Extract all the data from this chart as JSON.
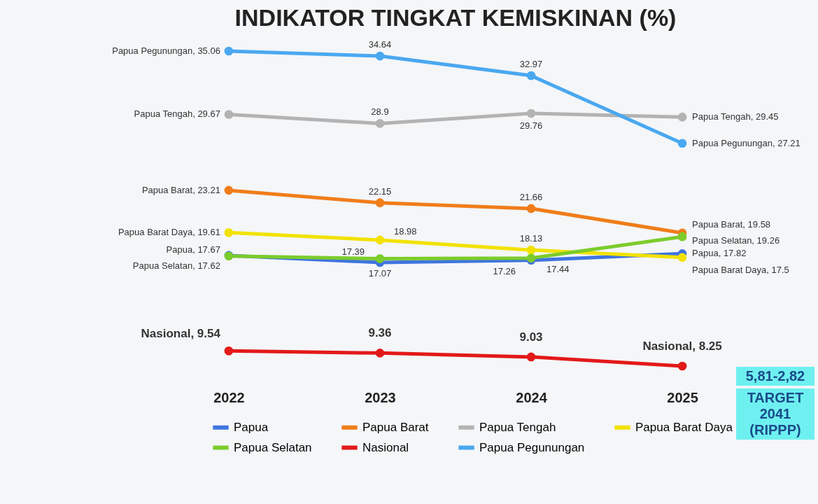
{
  "chart_data": {
    "type": "line",
    "title": "INDIKATOR TINGKAT KEMISKINAN (%)",
    "categories": [
      "2022",
      "2023",
      "2024",
      "2025"
    ],
    "series": [
      {
        "name": "Papua",
        "color": "#3f74e0",
        "values": [
          17.67,
          17.07,
          17.26,
          17.82
        ],
        "value_labels": [
          "Papua, 17.67",
          "17.07",
          "17.26",
          "Papua, 17.82"
        ]
      },
      {
        "name": "Papua Barat",
        "color": "#f07d1a",
        "values": [
          23.21,
          22.15,
          21.66,
          19.58
        ],
        "value_labels": [
          "Papua Barat, 23.21",
          "22.15",
          "21.66",
          "Papua Barat, 19.58"
        ]
      },
      {
        "name": "Papua Tengah",
        "color": "#b3b3b3",
        "values": [
          29.67,
          28.9,
          29.76,
          29.45
        ],
        "value_labels": [
          "Papua Tengah, 29.67",
          "28.9",
          "29.76",
          "Papua Tengah, 29.45"
        ]
      },
      {
        "name": "Papua Barat Daya",
        "color": "#f2e200",
        "values": [
          19.61,
          18.98,
          18.13,
          17.5
        ],
        "value_labels": [
          "Papua Barat Daya, 19.61",
          "18.98",
          "18.13",
          "Papua Barat Daya, 17.5"
        ]
      },
      {
        "name": "Papua Selatan",
        "color": "#7ccc2c",
        "values": [
          17.62,
          17.39,
          17.44,
          19.26
        ],
        "value_labels": [
          "Papua Selatan, 17.62",
          "17.39",
          "17.44",
          "Papua Selatan, 19.26"
        ]
      },
      {
        "name": "Nasional",
        "color": "#e31919",
        "values": [
          9.54,
          9.36,
          9.03,
          8.25
        ],
        "value_labels": [
          "Nasional, 9.54",
          "9.36",
          "9.03",
          "Nasional, 8.25"
        ]
      },
      {
        "name": "Papua Pegunungan",
        "color": "#4aa8f0",
        "values": [
          35.06,
          34.64,
          32.97,
          27.21
        ],
        "value_labels": [
          "Papua Pegunungan, 35.06",
          "34.64",
          "32.97",
          "Papua Pegunungan, 27.21"
        ]
      }
    ],
    "tick_labels": "x",
    "marker": "circle",
    "legend": "bottom",
    "annotations": [
      "5,81-2,82",
      "TARGET 2041 (RIPPP)"
    ]
  }
}
